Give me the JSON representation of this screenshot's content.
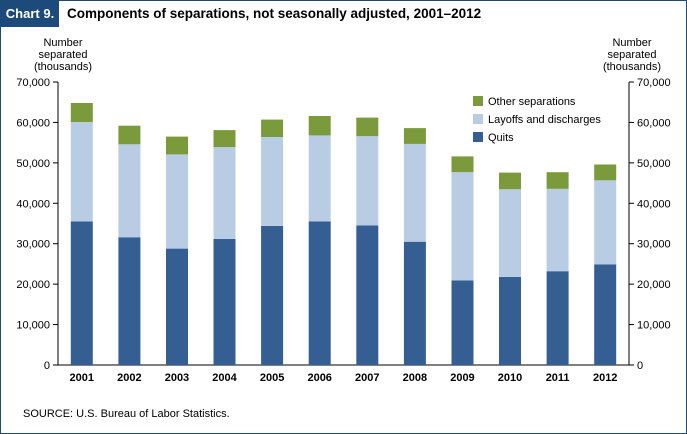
{
  "header": {
    "chart_label": "Chart 9.",
    "title": "Components of separations, not seasonally adjusted, 2001–2012"
  },
  "axes": {
    "left_title_lines": [
      "Number",
      "separated",
      "(thousands)"
    ],
    "right_title_lines": [
      "Number",
      "separated",
      "(thousands)"
    ]
  },
  "source": "SOURCE:  U.S. Bureau of Labor Statistics.",
  "colors": {
    "quits": "#355f93",
    "layoffs": "#b8cde4",
    "other": "#7a9a3c",
    "border": "#1c4a7a"
  },
  "chart_data": {
    "type": "bar",
    "stacked": true,
    "title": "Components of separations, not seasonally adjusted, 2001–2012",
    "ylabel": "Number separated (thousands)",
    "ylim": [
      0,
      70000
    ],
    "yticks": [
      0,
      10000,
      20000,
      30000,
      40000,
      50000,
      60000,
      70000
    ],
    "ytick_labels": [
      "0",
      "10,000",
      "20,000",
      "30,000",
      "40,000",
      "50,000",
      "60,000",
      "70,000"
    ],
    "categories": [
      "2001",
      "2002",
      "2003",
      "2004",
      "2005",
      "2006",
      "2007",
      "2008",
      "2009",
      "2010",
      "2011",
      "2012"
    ],
    "legend_position": "top-right",
    "legend_order": [
      "Other separations",
      "Layoffs and discharges",
      "Quits"
    ],
    "series": [
      {
        "name": "Quits",
        "color": "#355f93",
        "values": [
          35500,
          31600,
          28800,
          31200,
          34400,
          35500,
          34500,
          30500,
          20900,
          21800,
          23200,
          24900
        ]
      },
      {
        "name": "Layoffs and discharges",
        "color": "#b8cde4",
        "values": [
          24600,
          23000,
          23300,
          22700,
          22000,
          21300,
          22100,
          24200,
          26800,
          21700,
          20400,
          20800
        ]
      },
      {
        "name": "Other separations",
        "color": "#7a9a3c",
        "values": [
          4700,
          4600,
          4400,
          4200,
          4300,
          4800,
          4600,
          3900,
          3900,
          4100,
          4100,
          3900
        ]
      }
    ]
  }
}
